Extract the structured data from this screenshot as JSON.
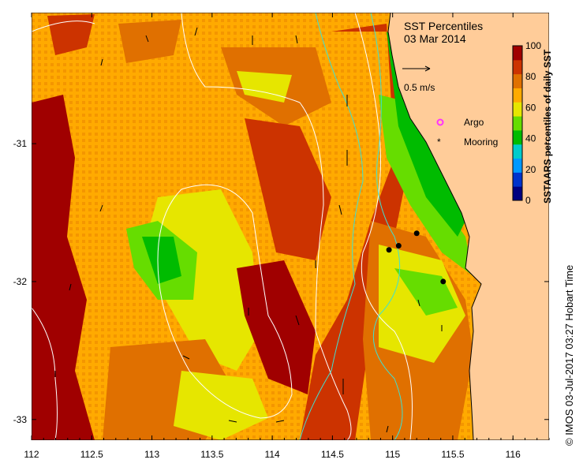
{
  "title": "SST Percentiles",
  "date": "03 Mar 2014",
  "scale_arrow_label": "0.5 m/s",
  "legend": {
    "argo_label": "Argo",
    "mooring_label": "Mooring",
    "argo_color": "#ff33ff",
    "mooring_color": "#000000"
  },
  "colorbar": {
    "label": "SSTAARS percentiles of daily SST",
    "ticks": [
      "0",
      "20",
      "40",
      "60",
      "80",
      "100"
    ],
    "colors": [
      "#000080",
      "#0033cc",
      "#0099ff",
      "#00cccc",
      "#00bb00",
      "#66dd00",
      "#e6e600",
      "#ffaa00",
      "#e07000",
      "#cc3300",
      "#a00000"
    ]
  },
  "credit": "© IMOS 03-Jul-2017 03:27 Hobart Time",
  "axes": {
    "x_ticks": [
      "112",
      "112.5",
      "113",
      "113.5",
      "114",
      "114.5",
      "115",
      "115.5",
      "116"
    ],
    "y_ticks": [
      "-31",
      "-32",
      "-33"
    ],
    "xlim": [
      112,
      116.3
    ],
    "ylim": [
      -33.15,
      -30.05
    ]
  },
  "colors": {
    "land": "#ffcc99",
    "contour_white": "#ffffff",
    "contour_cyan": "#40e0d0"
  },
  "moorings": [
    {
      "lon": 114.97,
      "lat": -31.77
    },
    {
      "lon": 115.05,
      "lat": -31.74
    },
    {
      "lon": 115.2,
      "lat": -31.65
    },
    {
      "lon": 115.42,
      "lat": -32.0
    }
  ]
}
